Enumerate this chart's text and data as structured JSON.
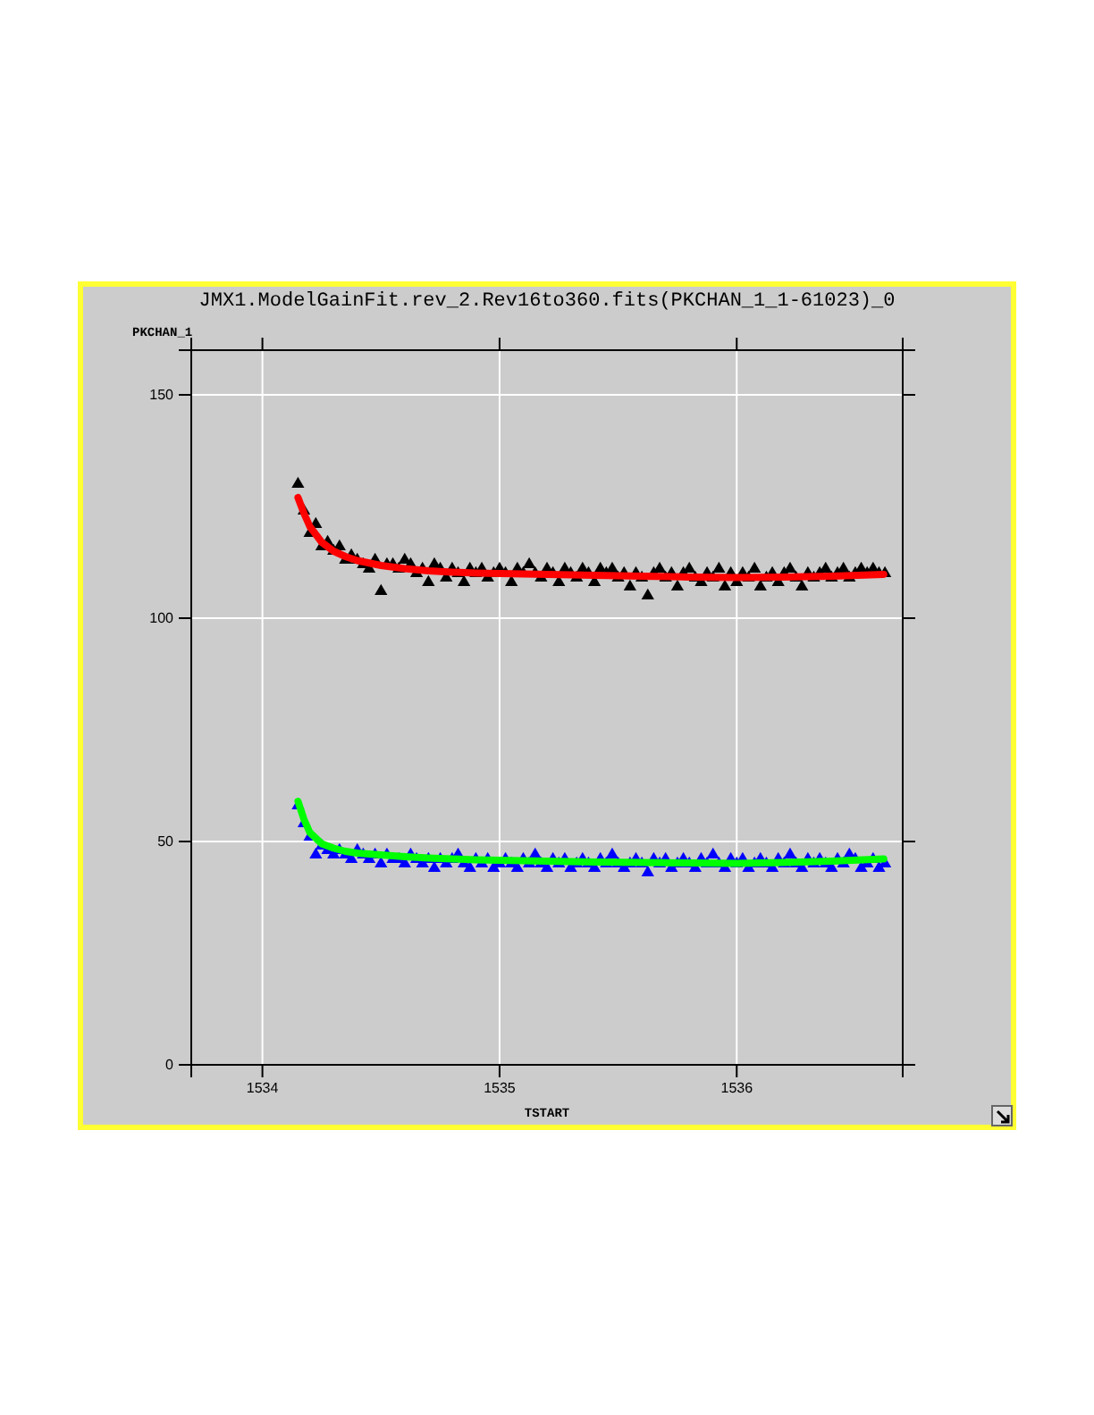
{
  "chart_data": {
    "type": "scatter",
    "title": "JMX1.ModelGainFit.rev_2.Rev16to360.fits(PKCHAN_1_1-61023)_0",
    "xlabel": "TSTART",
    "ylabel": "PKCHAN_1",
    "xlim": [
      1533.7,
      1536.7
    ],
    "xticks": [
      1534,
      1535,
      1536
    ],
    "ylim": [
      0,
      160
    ],
    "yticks": [
      0,
      50,
      100,
      150
    ],
    "grid": true,
    "marker": "triangle",
    "x": [
      1534.15,
      1534.175,
      1534.2,
      1534.225,
      1534.25,
      1534.275,
      1534.3,
      1534.325,
      1534.35,
      1534.375,
      1534.4,
      1534.425,
      1534.45,
      1534.475,
      1534.5,
      1534.525,
      1534.55,
      1534.575,
      1534.6,
      1534.625,
      1534.65,
      1534.675,
      1534.7,
      1534.725,
      1534.75,
      1534.775,
      1534.8,
      1534.825,
      1534.85,
      1534.875,
      1534.9,
      1534.925,
      1534.95,
      1534.975,
      1535,
      1535.025,
      1535.05,
      1535.075,
      1535.1,
      1535.125,
      1535.15,
      1535.175,
      1535.2,
      1535.225,
      1535.25,
      1535.275,
      1535.3,
      1535.325,
      1535.35,
      1535.375,
      1535.4,
      1535.425,
      1535.45,
      1535.475,
      1535.5,
      1535.525,
      1535.55,
      1535.575,
      1535.6,
      1535.625,
      1535.65,
      1535.675,
      1535.7,
      1535.725,
      1535.75,
      1535.775,
      1535.8,
      1535.825,
      1535.85,
      1535.875,
      1535.9,
      1535.925,
      1535.95,
      1535.975,
      1536,
      1536.025,
      1536.05,
      1536.075,
      1536.1,
      1536.125,
      1536.15,
      1536.175,
      1536.2,
      1536.225,
      1536.25,
      1536.275,
      1536.3,
      1536.325,
      1536.35,
      1536.375,
      1536.4,
      1536.425,
      1536.45,
      1536.475,
      1536.5,
      1536.525,
      1536.55,
      1536.575,
      1536.6,
      1536.625
    ],
    "series": [
      {
        "type": "scatter",
        "color": "#000000",
        "values": [
          130,
          124,
          119,
          121,
          116,
          117,
          115,
          116,
          113,
          114,
          113,
          112,
          111,
          113,
          106,
          112,
          112,
          111,
          113,
          112,
          110,
          111,
          108,
          112,
          111,
          109,
          111,
          110,
          108,
          111,
          110,
          111,
          109,
          110,
          111,
          110,
          108,
          111,
          110,
          112,
          110,
          109,
          111,
          110,
          108,
          111,
          110,
          109,
          111,
          110,
          108,
          111,
          110,
          111,
          109,
          110,
          107,
          110,
          109,
          105,
          110,
          111,
          109,
          110,
          107,
          110,
          111,
          109,
          108,
          110,
          109,
          111,
          107,
          110,
          108,
          110,
          109,
          111,
          107,
          109,
          110,
          108,
          110,
          111,
          109,
          107,
          110,
          109,
          110,
          111,
          109,
          110,
          111,
          109,
          110,
          111,
          110,
          111,
          110,
          110
        ]
      },
      {
        "type": "scatter",
        "color": "#0000ff",
        "values": [
          58,
          54,
          51,
          47,
          49,
          48,
          47,
          48,
          47,
          46,
          48,
          47,
          46,
          47,
          45,
          47,
          46,
          46,
          45,
          47,
          46,
          45,
          46,
          44,
          46,
          45,
          46,
          47,
          45,
          44,
          46,
          45,
          46,
          44,
          45,
          46,
          45,
          44,
          46,
          45,
          47,
          45,
          44,
          46,
          45,
          46,
          44,
          45,
          46,
          45,
          44,
          46,
          45,
          47,
          45,
          44,
          45,
          46,
          45,
          43,
          46,
          45,
          46,
          44,
          45,
          46,
          45,
          44,
          46,
          45,
          47,
          45,
          44,
          46,
          45,
          46,
          44,
          45,
          46,
          45,
          44,
          46,
          45,
          47,
          45,
          44,
          46,
          45,
          46,
          45,
          44,
          46,
          45,
          47,
          46,
          44,
          45,
          46,
          44,
          45
        ]
      },
      {
        "type": "line",
        "color": "#ff0000",
        "marker": "none",
        "x": [
          1534.15,
          1534.175,
          1534.2,
          1534.25,
          1534.3,
          1534.35,
          1534.4,
          1534.5,
          1534.6,
          1534.7,
          1534.8,
          1534.9,
          1535,
          1535.2,
          1535.4,
          1535.6,
          1535.8,
          1536,
          1536.2,
          1536.4,
          1536.62
        ],
        "values": [
          127,
          123.5,
          120.5,
          117,
          115,
          113.8,
          112.9,
          111.8,
          111.1,
          110.6,
          110.3,
          110.1,
          110,
          109.8,
          109.6,
          109.4,
          109.2,
          109.1,
          109.2,
          109.4,
          109.8
        ]
      },
      {
        "type": "line",
        "color": "#00ff00",
        "marker": "none",
        "x": [
          1534.15,
          1534.175,
          1534.2,
          1534.25,
          1534.3,
          1534.35,
          1534.4,
          1534.5,
          1534.6,
          1534.7,
          1534.8,
          1534.9,
          1535,
          1535.2,
          1535.4,
          1535.6,
          1535.8,
          1536,
          1536.2,
          1536.4,
          1536.62
        ],
        "values": [
          59,
          55,
          52,
          49.5,
          48.5,
          47.8,
          47.4,
          47,
          46.6,
          46.3,
          46.1,
          45.9,
          45.8,
          45.6,
          45.4,
          45.3,
          45.2,
          45.1,
          45.3,
          45.6,
          46.1
        ]
      }
    ]
  }
}
